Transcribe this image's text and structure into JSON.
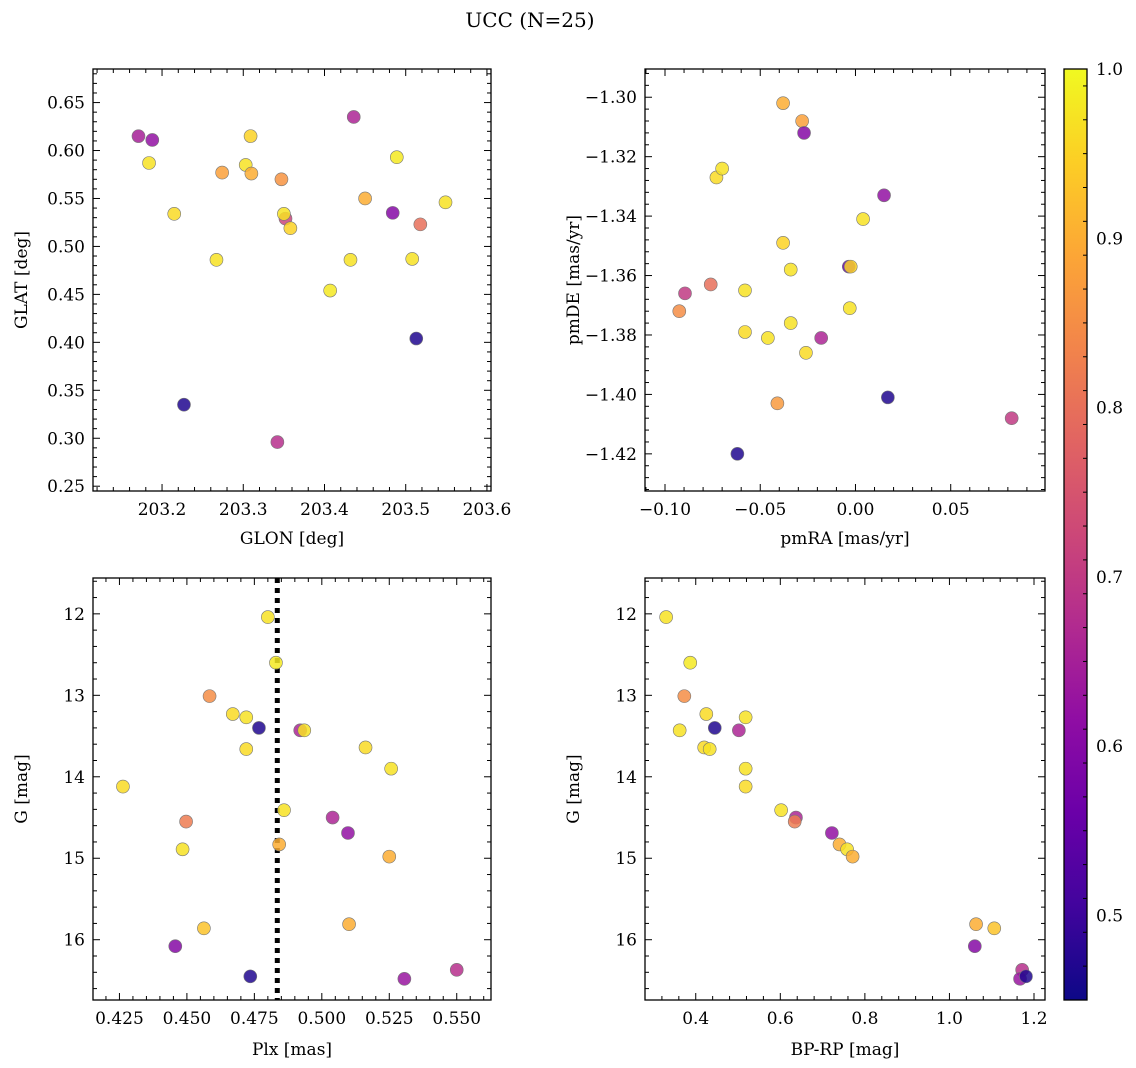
{
  "figure": {
    "title": "UCC (N=25)"
  },
  "colorbar": {
    "min": 0.45,
    "max": 1.0,
    "colormap": "plasma",
    "ticks": [
      0.5,
      0.6,
      0.7,
      0.8,
      0.9,
      1.0
    ],
    "tick_labels": [
      "0.5",
      "0.6",
      "0.7",
      "0.8",
      "0.9",
      "1.0"
    ]
  },
  "chart_data": [
    {
      "type": "scatter",
      "id": "glon-glat",
      "xlabel": "GLON [deg]",
      "ylabel": "GLAT [deg]",
      "xlim": [
        203.115,
        203.605
      ],
      "ylim": [
        0.245,
        0.685
      ],
      "y_inverted": false,
      "xticks": [
        203.2,
        203.3,
        203.4,
        203.5,
        203.6
      ],
      "xtick_labels": [
        "203.2",
        "203.3",
        "203.4",
        "203.5",
        "203.6"
      ],
      "yticks": [
        0.25,
        0.3,
        0.35,
        0.4,
        0.45,
        0.5,
        0.55,
        0.6,
        0.65
      ],
      "ytick_labels": [
        "0.25",
        "0.30",
        "0.35",
        "0.40",
        "0.45",
        "0.50",
        "0.55",
        "0.60",
        "0.65"
      ],
      "points": [
        {
          "x": 203.171,
          "y": 0.615,
          "c": 0.65
        },
        {
          "x": 203.188,
          "y": 0.611,
          "c": 0.62
        },
        {
          "x": 203.184,
          "y": 0.587,
          "c": 0.97
        },
        {
          "x": 203.215,
          "y": 0.534,
          "c": 0.96
        },
        {
          "x": 203.227,
          "y": 0.335,
          "c": 0.47
        },
        {
          "x": 203.267,
          "y": 0.486,
          "c": 0.97
        },
        {
          "x": 203.274,
          "y": 0.577,
          "c": 0.88
        },
        {
          "x": 203.303,
          "y": 0.585,
          "c": 0.97
        },
        {
          "x": 203.309,
          "y": 0.615,
          "c": 0.95
        },
        {
          "x": 203.31,
          "y": 0.576,
          "c": 0.9
        },
        {
          "x": 203.342,
          "y": 0.296,
          "c": 0.68
        },
        {
          "x": 203.347,
          "y": 0.57,
          "c": 0.86
        },
        {
          "x": 203.352,
          "y": 0.529,
          "c": 0.72
        },
        {
          "x": 203.35,
          "y": 0.534,
          "c": 0.97
        },
        {
          "x": 203.358,
          "y": 0.519,
          "c": 0.95
        },
        {
          "x": 203.407,
          "y": 0.454,
          "c": 0.98
        },
        {
          "x": 203.432,
          "y": 0.486,
          "c": 0.97
        },
        {
          "x": 203.436,
          "y": 0.635,
          "c": 0.66
        },
        {
          "x": 203.45,
          "y": 0.55,
          "c": 0.9
        },
        {
          "x": 203.484,
          "y": 0.535,
          "c": 0.6
        },
        {
          "x": 203.489,
          "y": 0.593,
          "c": 0.98
        },
        {
          "x": 203.508,
          "y": 0.487,
          "c": 0.97
        },
        {
          "x": 203.513,
          "y": 0.404,
          "c": 0.47
        },
        {
          "x": 203.518,
          "y": 0.523,
          "c": 0.8
        },
        {
          "x": 203.549,
          "y": 0.546,
          "c": 0.97
        }
      ]
    },
    {
      "type": "scatter",
      "id": "pmra-pmde",
      "xlabel": "pmRA [mas/yr]",
      "ylabel": "pmDE [mas/yr]",
      "xlim": [
        -0.1105,
        0.0995
      ],
      "ylim": [
        -1.4325,
        -1.2905
      ],
      "y_inverted": false,
      "xticks": [
        -0.1,
        -0.05,
        0.0,
        0.05
      ],
      "xtick_labels": [
        "−0.10",
        "−0.05",
        "0.00",
        "0.05"
      ],
      "yticks": [
        -1.42,
        -1.4,
        -1.38,
        -1.36,
        -1.34,
        -1.32,
        -1.3
      ],
      "ytick_labels": [
        "−1.42",
        "−1.40",
        "−1.38",
        "−1.36",
        "−1.34",
        "−1.32",
        "−1.30"
      ],
      "points": [
        {
          "x": -0.0925,
          "y": -1.372,
          "c": 0.85
        },
        {
          "x": -0.0895,
          "y": -1.366,
          "c": 0.7
        },
        {
          "x": -0.076,
          "y": -1.363,
          "c": 0.8
        },
        {
          "x": -0.073,
          "y": -1.327,
          "c": 0.96
        },
        {
          "x": -0.07,
          "y": -1.324,
          "c": 0.97
        },
        {
          "x": -0.062,
          "y": -1.42,
          "c": 0.47
        },
        {
          "x": -0.058,
          "y": -1.365,
          "c": 0.97
        },
        {
          "x": -0.058,
          "y": -1.379,
          "c": 0.96
        },
        {
          "x": -0.046,
          "y": -1.381,
          "c": 0.97
        },
        {
          "x": -0.041,
          "y": -1.403,
          "c": 0.87
        },
        {
          "x": -0.038,
          "y": -1.302,
          "c": 0.9
        },
        {
          "x": -0.038,
          "y": -1.349,
          "c": 0.95
        },
        {
          "x": -0.034,
          "y": -1.358,
          "c": 0.97
        },
        {
          "x": -0.034,
          "y": -1.376,
          "c": 0.97
        },
        {
          "x": -0.028,
          "y": -1.308,
          "c": 0.88
        },
        {
          "x": -0.027,
          "y": -1.312,
          "c": 0.6
        },
        {
          "x": -0.026,
          "y": -1.386,
          "c": 0.96
        },
        {
          "x": -0.018,
          "y": -1.381,
          "c": 0.66
        },
        {
          "x": -0.0035,
          "y": -1.357,
          "c": 0.55
        },
        {
          "x": -0.0025,
          "y": -1.357,
          "c": 0.95
        },
        {
          "x": -0.003,
          "y": -1.371,
          "c": 0.97
        },
        {
          "x": 0.004,
          "y": -1.341,
          "c": 0.97
        },
        {
          "x": 0.015,
          "y": -1.333,
          "c": 0.62
        },
        {
          "x": 0.017,
          "y": -1.401,
          "c": 0.47
        },
        {
          "x": 0.082,
          "y": -1.408,
          "c": 0.7
        }
      ]
    },
    {
      "type": "scatter",
      "id": "plx-g",
      "xlabel": "Plx [mas]",
      "ylabel": "G [mag]",
      "xlim": [
        0.4152,
        0.5627
      ],
      "ylim": [
        16.74,
        11.56
      ],
      "y_inverted": true,
      "reference_line": {
        "orientation": "vertical",
        "x": 0.4835,
        "style": "dotted"
      },
      "xticks": [
        0.425,
        0.45,
        0.475,
        0.5,
        0.525,
        0.55
      ],
      "xtick_labels": [
        "0.425",
        "0.450",
        "0.475",
        "0.500",
        "0.525",
        "0.550"
      ],
      "yticks": [
        12,
        13,
        14,
        15,
        16
      ],
      "ytick_labels": [
        "12",
        "13",
        "14",
        "15",
        "16"
      ],
      "points": [
        {
          "x": 0.4263,
          "y": 14.12,
          "c": 0.96
        },
        {
          "x": 0.4457,
          "y": 16.08,
          "c": 0.6
        },
        {
          "x": 0.4484,
          "y": 14.89,
          "c": 0.97
        },
        {
          "x": 0.4497,
          "y": 14.55,
          "c": 0.82
        },
        {
          "x": 0.4563,
          "y": 15.86,
          "c": 0.93
        },
        {
          "x": 0.4584,
          "y": 13.01,
          "c": 0.85
        },
        {
          "x": 0.467,
          "y": 13.23,
          "c": 0.96
        },
        {
          "x": 0.472,
          "y": 13.27,
          "c": 0.97
        },
        {
          "x": 0.472,
          "y": 13.66,
          "c": 0.96
        },
        {
          "x": 0.4735,
          "y": 16.45,
          "c": 0.47
        },
        {
          "x": 0.4767,
          "y": 13.4,
          "c": 0.47
        },
        {
          "x": 0.48,
          "y": 12.04,
          "c": 0.97
        },
        {
          "x": 0.483,
          "y": 12.6,
          "c": 0.98
        },
        {
          "x": 0.4842,
          "y": 14.83,
          "c": 0.9
        },
        {
          "x": 0.486,
          "y": 14.41,
          "c": 0.97
        },
        {
          "x": 0.492,
          "y": 13.43,
          "c": 0.66
        },
        {
          "x": 0.4935,
          "y": 13.43,
          "c": 0.97
        },
        {
          "x": 0.504,
          "y": 14.5,
          "c": 0.66
        },
        {
          "x": 0.5097,
          "y": 14.69,
          "c": 0.62
        },
        {
          "x": 0.5101,
          "y": 15.81,
          "c": 0.9
        },
        {
          "x": 0.5162,
          "y": 13.64,
          "c": 0.96
        },
        {
          "x": 0.525,
          "y": 14.98,
          "c": 0.9
        },
        {
          "x": 0.5257,
          "y": 13.9,
          "c": 0.97
        },
        {
          "x": 0.5306,
          "y": 16.48,
          "c": 0.63
        },
        {
          "x": 0.55,
          "y": 16.37,
          "c": 0.68
        }
      ]
    },
    {
      "type": "scatter",
      "id": "bprp-g",
      "xlabel": "BP-RP [mag]",
      "ylabel": "G [mag]",
      "xlim": [
        0.28,
        1.226
      ],
      "ylim": [
        16.74,
        11.56
      ],
      "y_inverted": true,
      "xticks": [
        0.4,
        0.6,
        0.8,
        1.0,
        1.2
      ],
      "xtick_labels": [
        "0.4",
        "0.6",
        "0.8",
        "1.0",
        "1.2"
      ],
      "yticks": [
        12,
        13,
        14,
        15,
        16
      ],
      "ytick_labels": [
        "12",
        "13",
        "14",
        "15",
        "16"
      ],
      "points": [
        {
          "x": 0.33,
          "y": 12.04,
          "c": 0.97
        },
        {
          "x": 0.362,
          "y": 13.43,
          "c": 0.97
        },
        {
          "x": 0.373,
          "y": 13.01,
          "c": 0.85
        },
        {
          "x": 0.387,
          "y": 12.6,
          "c": 0.98
        },
        {
          "x": 0.42,
          "y": 13.64,
          "c": 0.96
        },
        {
          "x": 0.425,
          "y": 13.23,
          "c": 0.96
        },
        {
          "x": 0.433,
          "y": 13.66,
          "c": 0.97
        },
        {
          "x": 0.445,
          "y": 13.4,
          "c": 0.47
        },
        {
          "x": 0.502,
          "y": 13.43,
          "c": 0.66
        },
        {
          "x": 0.518,
          "y": 13.27,
          "c": 0.97
        },
        {
          "x": 0.518,
          "y": 13.9,
          "c": 0.97
        },
        {
          "x": 0.518,
          "y": 14.12,
          "c": 0.96
        },
        {
          "x": 0.602,
          "y": 14.41,
          "c": 0.97
        },
        {
          "x": 0.637,
          "y": 14.5,
          "c": 0.66
        },
        {
          "x": 0.634,
          "y": 14.55,
          "c": 0.82
        },
        {
          "x": 0.722,
          "y": 14.69,
          "c": 0.62
        },
        {
          "x": 0.74,
          "y": 14.83,
          "c": 0.9
        },
        {
          "x": 0.758,
          "y": 14.89,
          "c": 0.97
        },
        {
          "x": 0.771,
          "y": 14.98,
          "c": 0.9
        },
        {
          "x": 1.063,
          "y": 15.81,
          "c": 0.9
        },
        {
          "x": 1.06,
          "y": 16.08,
          "c": 0.6
        },
        {
          "x": 1.106,
          "y": 15.86,
          "c": 0.93
        },
        {
          "x": 1.172,
          "y": 16.37,
          "c": 0.68
        },
        {
          "x": 1.167,
          "y": 16.48,
          "c": 0.63
        },
        {
          "x": 1.181,
          "y": 16.45,
          "c": 0.47
        }
      ]
    }
  ]
}
